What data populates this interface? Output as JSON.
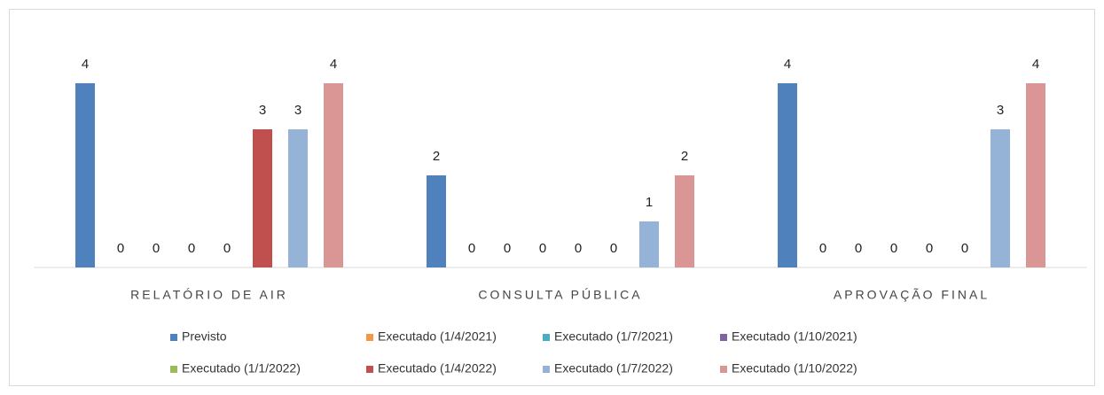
{
  "chart_data": {
    "type": "bar",
    "categories": [
      "RELATÓRIO DE AIR",
      "CONSULTA PÚBLICA",
      "APROVAÇÃO FINAL"
    ],
    "series": [
      {
        "name": "Previsto",
        "color": "#4f81bd",
        "values": [
          4,
          2,
          4
        ]
      },
      {
        "name": "Executado (1/4/2021)",
        "color": "#f79646",
        "values": [
          0,
          0,
          0
        ]
      },
      {
        "name": "Executado (1/7/2021)",
        "color": "#4bacc6",
        "values": [
          0,
          0,
          0
        ]
      },
      {
        "name": "Executado (1/10/2021)",
        "color": "#8064a2",
        "values": [
          0,
          0,
          0
        ]
      },
      {
        "name": "Executado (1/1/2022)",
        "color": "#9bbb59",
        "values": [
          0,
          0,
          0
        ]
      },
      {
        "name": "Executado (1/4/2022)",
        "color": "#c0504d",
        "values": [
          3,
          0,
          0
        ]
      },
      {
        "name": "Executado (1/7/2022)",
        "color": "#95b3d7",
        "values": [
          3,
          1,
          3
        ]
      },
      {
        "name": "Executado (1/10/2022)",
        "color": "#d99694",
        "values": [
          4,
          2,
          4
        ]
      }
    ],
    "legend": "bottom"
  }
}
